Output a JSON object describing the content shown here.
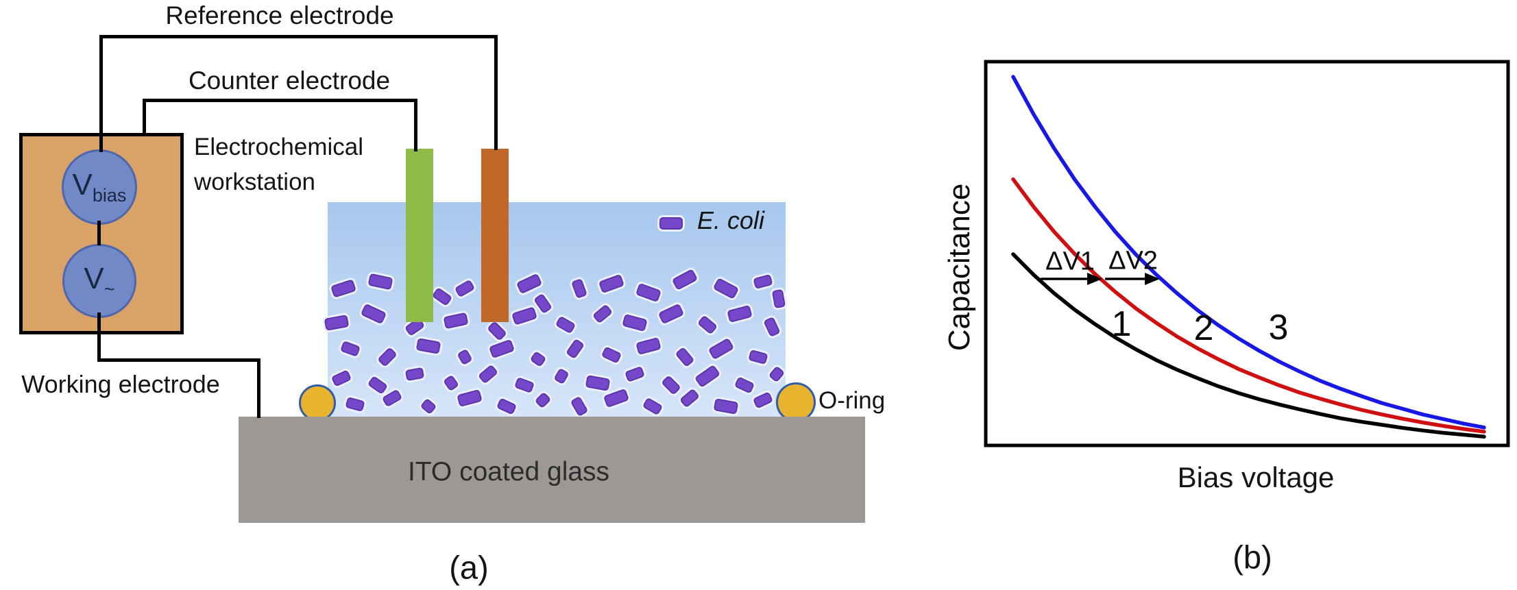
{
  "figure": {
    "panel_a": {
      "caption": "(a)",
      "labels": {
        "reference_electrode": "Reference electrode",
        "counter_electrode": "Counter electrode",
        "workstation_line1": "Electrochemical",
        "workstation_line2": "workstation",
        "working_electrode": "Working electrode",
        "vbias_main": "V",
        "vbias_sub": "bias",
        "vac_main": "V",
        "vac_sub": "~",
        "ecoli_legend": "E. coli",
        "oring": "O-ring",
        "ito": "ITO coated glass"
      },
      "colors": {
        "workstation_fill": "#d9a266",
        "source_fill": "#7289c7",
        "source_border": "#4d66ae",
        "electrode_green": "#8fbc48",
        "electrode_orange": "#c0682a",
        "liquid_top": "#a7c7ee",
        "liquid_bottom": "#d6e5f9",
        "bacteria_fill": "#7448c8",
        "bacteria_border": "#5f33ad",
        "oring_fill": "#eab32d",
        "oring_border": "#2f5da9",
        "ito_gray": "#9b9896",
        "wire": "#000000"
      },
      "bacteria": [
        [
          3.5,
          40,
          -18,
          "L"
        ],
        [
          11.5,
          37,
          12,
          "L"
        ],
        [
          25,
          44,
          35,
          "M"
        ],
        [
          30,
          40,
          -30,
          "M"
        ],
        [
          44,
          38,
          -25,
          "L"
        ],
        [
          47,
          47,
          55,
          "M"
        ],
        [
          55,
          40,
          70,
          "M"
        ],
        [
          62,
          38,
          -20,
          "L"
        ],
        [
          70,
          42,
          20,
          "L"
        ],
        [
          78,
          36,
          -28,
          "L"
        ],
        [
          87,
          40,
          28,
          "L"
        ],
        [
          95,
          37,
          -15,
          "M"
        ],
        [
          98.5,
          45,
          80,
          "M"
        ],
        [
          2,
          56,
          -10,
          "L"
        ],
        [
          10,
          52,
          25,
          "L"
        ],
        [
          19,
          58,
          -35,
          "M"
        ],
        [
          28,
          55,
          -12,
          "L"
        ],
        [
          37,
          60,
          45,
          "M"
        ],
        [
          43,
          53,
          -18,
          "L"
        ],
        [
          52,
          57,
          30,
          "M"
        ],
        [
          60,
          52,
          -40,
          "M"
        ],
        [
          67,
          56,
          15,
          "L"
        ],
        [
          75,
          52,
          -25,
          "L"
        ],
        [
          83,
          57,
          40,
          "M"
        ],
        [
          90,
          52,
          -15,
          "L"
        ],
        [
          97,
          58,
          65,
          "M"
        ],
        [
          5,
          68,
          20,
          "M"
        ],
        [
          13,
          72,
          -45,
          "M"
        ],
        [
          22,
          67,
          10,
          "L"
        ],
        [
          30,
          72,
          60,
          "S"
        ],
        [
          38,
          68,
          -20,
          "L"
        ],
        [
          46,
          73,
          35,
          "S"
        ],
        [
          54,
          68,
          -55,
          "M"
        ],
        [
          62,
          71,
          25,
          "M"
        ],
        [
          70,
          67,
          -15,
          "L"
        ],
        [
          78,
          72,
          50,
          "M"
        ],
        [
          86,
          68,
          -30,
          "L"
        ],
        [
          94,
          72,
          15,
          "M"
        ],
        [
          3,
          82,
          -25,
          "M"
        ],
        [
          11,
          85,
          35,
          "M"
        ],
        [
          19,
          80,
          -10,
          "M"
        ],
        [
          27,
          84,
          55,
          "S"
        ],
        [
          35,
          80,
          -40,
          "M"
        ],
        [
          43,
          85,
          20,
          "M"
        ],
        [
          51,
          81,
          -60,
          "S"
        ],
        [
          59,
          84,
          10,
          "L"
        ],
        [
          67,
          80,
          -20,
          "M"
        ],
        [
          75,
          85,
          45,
          "M"
        ],
        [
          83,
          81,
          -35,
          "L"
        ],
        [
          91,
          85,
          25,
          "M"
        ],
        [
          98,
          80,
          -50,
          "S"
        ],
        [
          6,
          94,
          15,
          "M"
        ],
        [
          14,
          91,
          -30,
          "M"
        ],
        [
          22,
          95,
          40,
          "S"
        ],
        [
          31,
          91,
          -15,
          "L"
        ],
        [
          39,
          95,
          25,
          "M"
        ],
        [
          47,
          92,
          -45,
          "S"
        ],
        [
          55,
          95,
          60,
          "M"
        ],
        [
          63,
          91,
          -20,
          "L"
        ],
        [
          71,
          95,
          30,
          "M"
        ],
        [
          79,
          91,
          -40,
          "M"
        ],
        [
          87,
          95,
          10,
          "L"
        ],
        [
          95,
          92,
          -25,
          "M"
        ]
      ]
    },
    "panel_b": {
      "caption": "(b)"
    }
  },
  "chart_data": {
    "type": "line",
    "title": "",
    "xlabel": "Bias voltage",
    "ylabel": "Capacitance",
    "axes_style": "schematic, no ticks, no numeric scale",
    "legend_position": "none (curves labeled inline)",
    "grid": false,
    "x_frac_range": [
      0.0,
      1.0
    ],
    "annotations": [
      {
        "label": "ΔV1",
        "meaning": "horizontal shift from curve 1 to curve 2 at constant capacitance"
      },
      {
        "label": "ΔV2",
        "meaning": "horizontal shift from curve 2 to curve 3 at constant capacitance"
      }
    ],
    "series": [
      {
        "name": "1",
        "color": "#000000",
        "capacitance_frac": [
          0.5,
          0.446,
          0.398,
          0.355,
          0.317,
          0.282,
          0.251,
          0.223,
          0.198,
          0.176,
          0.155,
          0.137,
          0.121,
          0.107,
          0.094,
          0.082,
          0.071,
          0.062,
          0.054,
          0.046,
          0.039,
          0.033,
          0.028,
          0.023
        ]
      },
      {
        "name": "2",
        "color": "#d01010",
        "capacitance_frac": [
          0.696,
          0.624,
          0.559,
          0.501,
          0.448,
          0.401,
          0.358,
          0.32,
          0.285,
          0.254,
          0.226,
          0.2,
          0.178,
          0.157,
          0.138,
          0.122,
          0.107,
          0.093,
          0.081,
          0.07,
          0.06,
          0.051,
          0.043,
          0.036
        ]
      },
      {
        "name": "3",
        "color": "#1717e8",
        "capacitance_frac": [
          0.964,
          0.866,
          0.777,
          0.696,
          0.624,
          0.558,
          0.499,
          0.446,
          0.398,
          0.354,
          0.315,
          0.28,
          0.248,
          0.219,
          0.193,
          0.169,
          0.148,
          0.129,
          0.111,
          0.096,
          0.081,
          0.069,
          0.057,
          0.047
        ]
      }
    ]
  }
}
